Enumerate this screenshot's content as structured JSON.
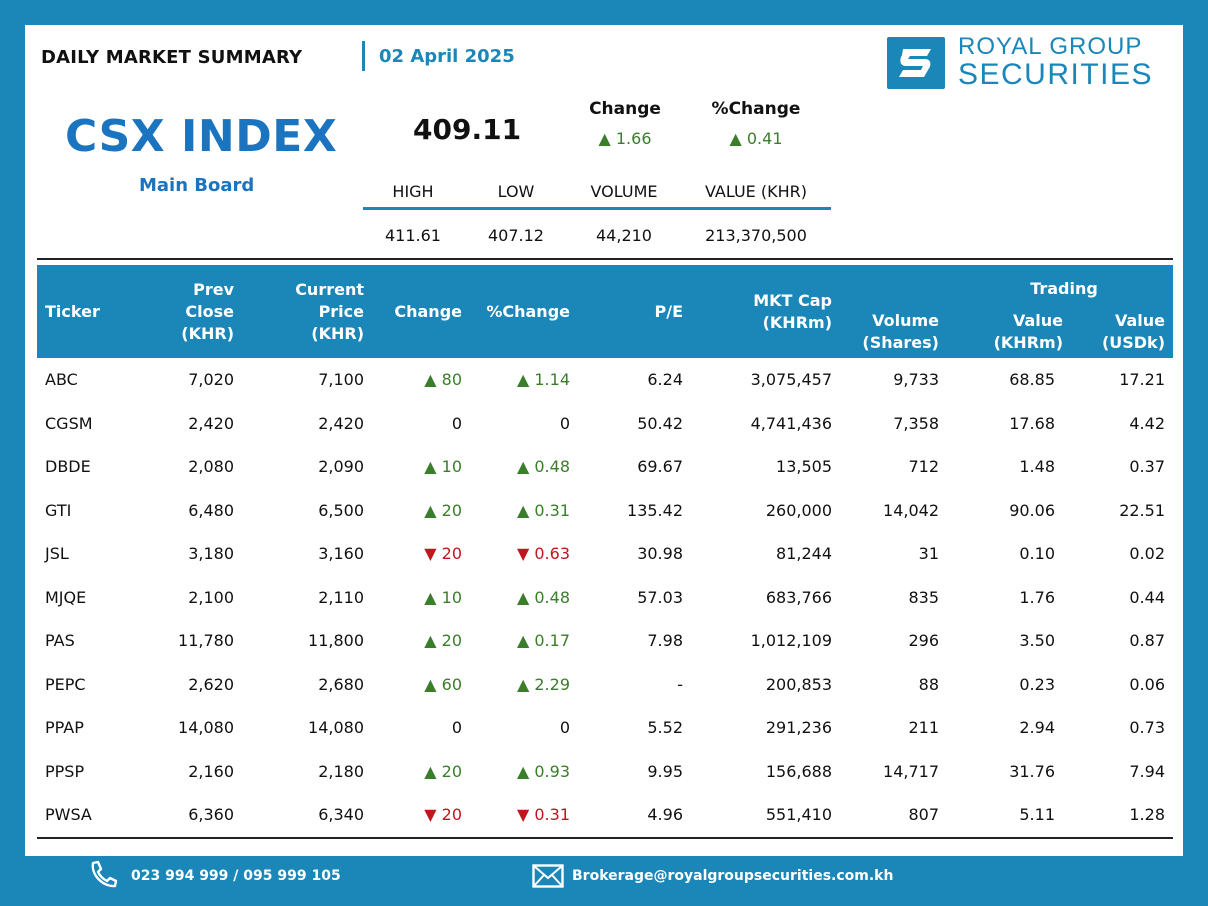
{
  "header": {
    "title": "DAILY MARKET SUMMARY",
    "date": "02 April 2025",
    "brand_line1": "ROYAL GROUP",
    "brand_line2": "SECURITIES"
  },
  "index": {
    "name": "CSX INDEX",
    "board": "Main Board",
    "value": "409.11",
    "change_label": "Change",
    "pct_change_label": "%Change",
    "change": "▲ 1.66",
    "pct_change": "▲ 0.41",
    "stats": {
      "headers": [
        "HIGH",
        "LOW",
        "VOLUME",
        "VALUE (KHR)"
      ],
      "values": [
        "411.61",
        "407.12",
        "44,210",
        "213,370,500"
      ]
    }
  },
  "table": {
    "headers": {
      "ticker": "Ticker",
      "prev_close": [
        "Prev",
        "Close",
        "(KHR)"
      ],
      "current_price": [
        "Current Price",
        "(KHR)"
      ],
      "change": "Change",
      "pct_change": "%Change",
      "pe": "P/E",
      "mkt_cap": [
        "MKT Cap",
        "(KHRm)"
      ],
      "volume": [
        "Volume",
        "(Shares)"
      ],
      "trading_group": "Trading",
      "value_khrm": [
        "Value",
        "(KHRm)"
      ],
      "value_usdk": [
        "Value",
        "(USDk)"
      ]
    },
    "rows": [
      {
        "ticker": "ABC",
        "prev": "7,020",
        "cur": "7,100",
        "dir": "up",
        "chg": "80",
        "pct": "1.14",
        "pe": "6.24",
        "cap": "3,075,457",
        "vol": "9,733",
        "val": "68.85",
        "usd": "17.21"
      },
      {
        "ticker": "CGSM",
        "prev": "2,420",
        "cur": "2,420",
        "dir": "flat",
        "chg": "0",
        "pct": "0",
        "pe": "50.42",
        "cap": "4,741,436",
        "vol": "7,358",
        "val": "17.68",
        "usd": "4.42"
      },
      {
        "ticker": "DBDE",
        "prev": "2,080",
        "cur": "2,090",
        "dir": "up",
        "chg": "10",
        "pct": "0.48",
        "pe": "69.67",
        "cap": "13,505",
        "vol": "712",
        "val": "1.48",
        "usd": "0.37"
      },
      {
        "ticker": "GTI",
        "prev": "6,480",
        "cur": "6,500",
        "dir": "up",
        "chg": "20",
        "pct": "0.31",
        "pe": "135.42",
        "cap": "260,000",
        "vol": "14,042",
        "val": "90.06",
        "usd": "22.51"
      },
      {
        "ticker": "JSL",
        "prev": "3,180",
        "cur": "3,160",
        "dir": "down",
        "chg": "20",
        "pct": "0.63",
        "pe": "30.98",
        "cap": "81,244",
        "vol": "31",
        "val": "0.10",
        "usd": "0.02"
      },
      {
        "ticker": "MJQE",
        "prev": "2,100",
        "cur": "2,110",
        "dir": "up",
        "chg": "10",
        "pct": "0.48",
        "pe": "57.03",
        "cap": "683,766",
        "vol": "835",
        "val": "1.76",
        "usd": "0.44"
      },
      {
        "ticker": "PAS",
        "prev": "11,780",
        "cur": "11,800",
        "dir": "up",
        "chg": "20",
        "pct": "0.17",
        "pe": "7.98",
        "cap": "1,012,109",
        "vol": "296",
        "val": "3.50",
        "usd": "0.87"
      },
      {
        "ticker": "PEPC",
        "prev": "2,620",
        "cur": "2,680",
        "dir": "up",
        "chg": "60",
        "pct": "2.29",
        "pe": "-",
        "cap": "200,853",
        "vol": "88",
        "val": "0.23",
        "usd": "0.06"
      },
      {
        "ticker": "PPAP",
        "prev": "14,080",
        "cur": "14,080",
        "dir": "flat",
        "chg": "0",
        "pct": "0",
        "pe": "5.52",
        "cap": "291,236",
        "vol": "211",
        "val": "2.94",
        "usd": "0.73"
      },
      {
        "ticker": "PPSP",
        "prev": "2,160",
        "cur": "2,180",
        "dir": "up",
        "chg": "20",
        "pct": "0.93",
        "pe": "9.95",
        "cap": "156,688",
        "vol": "14,717",
        "val": "31.76",
        "usd": "7.94"
      },
      {
        "ticker": "PWSA",
        "prev": "6,360",
        "cur": "6,340",
        "dir": "down",
        "chg": "20",
        "pct": "0.31",
        "pe": "4.96",
        "cap": "551,410",
        "vol": "807",
        "val": "5.11",
        "usd": "1.28"
      }
    ]
  },
  "footer": {
    "phone": "023 994 999 / 095 999 105",
    "email": "Brokerage@royalgroupsecurities.com.kh",
    "phone_icon": "phone-icon",
    "email_icon": "envelope-icon"
  },
  "colors": {
    "brand_blue": "#1b86b8",
    "title_blue": "#1a74bf",
    "up_green": "#3a7d2a",
    "down_red": "#c0161d"
  }
}
